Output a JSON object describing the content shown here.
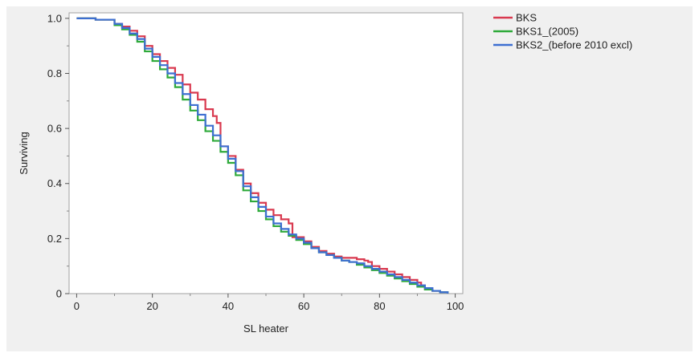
{
  "chart_data": {
    "type": "line",
    "step": true,
    "xlabel": "SL heater",
    "ylabel": "Surviving",
    "xlim": [
      -2,
      102
    ],
    "ylim": [
      0,
      1.02
    ],
    "xticks": [
      0,
      20,
      40,
      60,
      80,
      100
    ],
    "xtick_labels": [
      "0",
      "20",
      "40",
      "60",
      "80",
      "100"
    ],
    "yticks": [
      0,
      0.2,
      0.4,
      0.6,
      0.8,
      1.0
    ],
    "ytick_labels": [
      "0",
      "0.2",
      "0.4",
      "0.6",
      "0.8",
      "1.0"
    ],
    "grid": false,
    "legend_position": "right-top",
    "series": [
      {
        "name": "BKS",
        "color": "#d9394f",
        "x": [
          0,
          5,
          10,
          12,
          14,
          16,
          18,
          20,
          22,
          24,
          26,
          28,
          30,
          32,
          34,
          36,
          37,
          38,
          40,
          42,
          44,
          46,
          48,
          50,
          52,
          54,
          56,
          57,
          60,
          62,
          64,
          66,
          68,
          70,
          74,
          76,
          77,
          78,
          80,
          82,
          84,
          86,
          88,
          90,
          91,
          92,
          94,
          96,
          98
        ],
        "y": [
          1.0,
          0.995,
          0.98,
          0.97,
          0.955,
          0.935,
          0.9,
          0.87,
          0.845,
          0.82,
          0.795,
          0.76,
          0.73,
          0.705,
          0.67,
          0.645,
          0.62,
          0.535,
          0.5,
          0.45,
          0.4,
          0.365,
          0.33,
          0.305,
          0.285,
          0.27,
          0.255,
          0.205,
          0.19,
          0.17,
          0.155,
          0.145,
          0.135,
          0.13,
          0.125,
          0.12,
          0.115,
          0.1,
          0.09,
          0.08,
          0.07,
          0.06,
          0.05,
          0.04,
          0.03,
          0.015,
          0.01,
          0.005,
          0.0
        ]
      },
      {
        "name": "BKS1_(2005)",
        "color": "#2eaa3a",
        "x": [
          0,
          5,
          10,
          12,
          14,
          16,
          18,
          20,
          22,
          24,
          26,
          28,
          30,
          32,
          34,
          36,
          38,
          40,
          42,
          44,
          46,
          48,
          50,
          52,
          54,
          56,
          58,
          60,
          62,
          64,
          66,
          68,
          70,
          72,
          74,
          76,
          78,
          80,
          82,
          84,
          86,
          88,
          90,
          92,
          94,
          96,
          98
        ],
        "y": [
          1.0,
          0.995,
          0.975,
          0.96,
          0.94,
          0.915,
          0.88,
          0.845,
          0.815,
          0.785,
          0.75,
          0.705,
          0.665,
          0.63,
          0.59,
          0.555,
          0.515,
          0.475,
          0.43,
          0.375,
          0.335,
          0.3,
          0.27,
          0.245,
          0.225,
          0.21,
          0.195,
          0.18,
          0.165,
          0.15,
          0.14,
          0.13,
          0.12,
          0.115,
          0.105,
          0.095,
          0.085,
          0.075,
          0.065,
          0.055,
          0.045,
          0.035,
          0.025,
          0.015,
          0.01,
          0.005,
          0.0
        ]
      },
      {
        "name": "BKS2_(before 2010 excl)",
        "color": "#3d6fd1",
        "x": [
          0,
          5,
          10,
          12,
          14,
          16,
          18,
          20,
          22,
          24,
          26,
          28,
          30,
          32,
          34,
          36,
          38,
          40,
          42,
          44,
          46,
          48,
          50,
          52,
          54,
          56,
          58,
          60,
          62,
          64,
          66,
          68,
          70,
          72,
          74,
          76,
          78,
          80,
          82,
          84,
          86,
          88,
          90,
          92,
          94,
          96,
          98
        ],
        "y": [
          1.0,
          0.995,
          0.98,
          0.965,
          0.945,
          0.925,
          0.89,
          0.86,
          0.83,
          0.8,
          0.765,
          0.725,
          0.685,
          0.65,
          0.61,
          0.575,
          0.535,
          0.49,
          0.445,
          0.39,
          0.35,
          0.315,
          0.28,
          0.255,
          0.235,
          0.215,
          0.2,
          0.185,
          0.165,
          0.15,
          0.14,
          0.13,
          0.12,
          0.115,
          0.11,
          0.1,
          0.09,
          0.08,
          0.07,
          0.06,
          0.05,
          0.04,
          0.03,
          0.02,
          0.01,
          0.005,
          0.0
        ]
      }
    ]
  }
}
